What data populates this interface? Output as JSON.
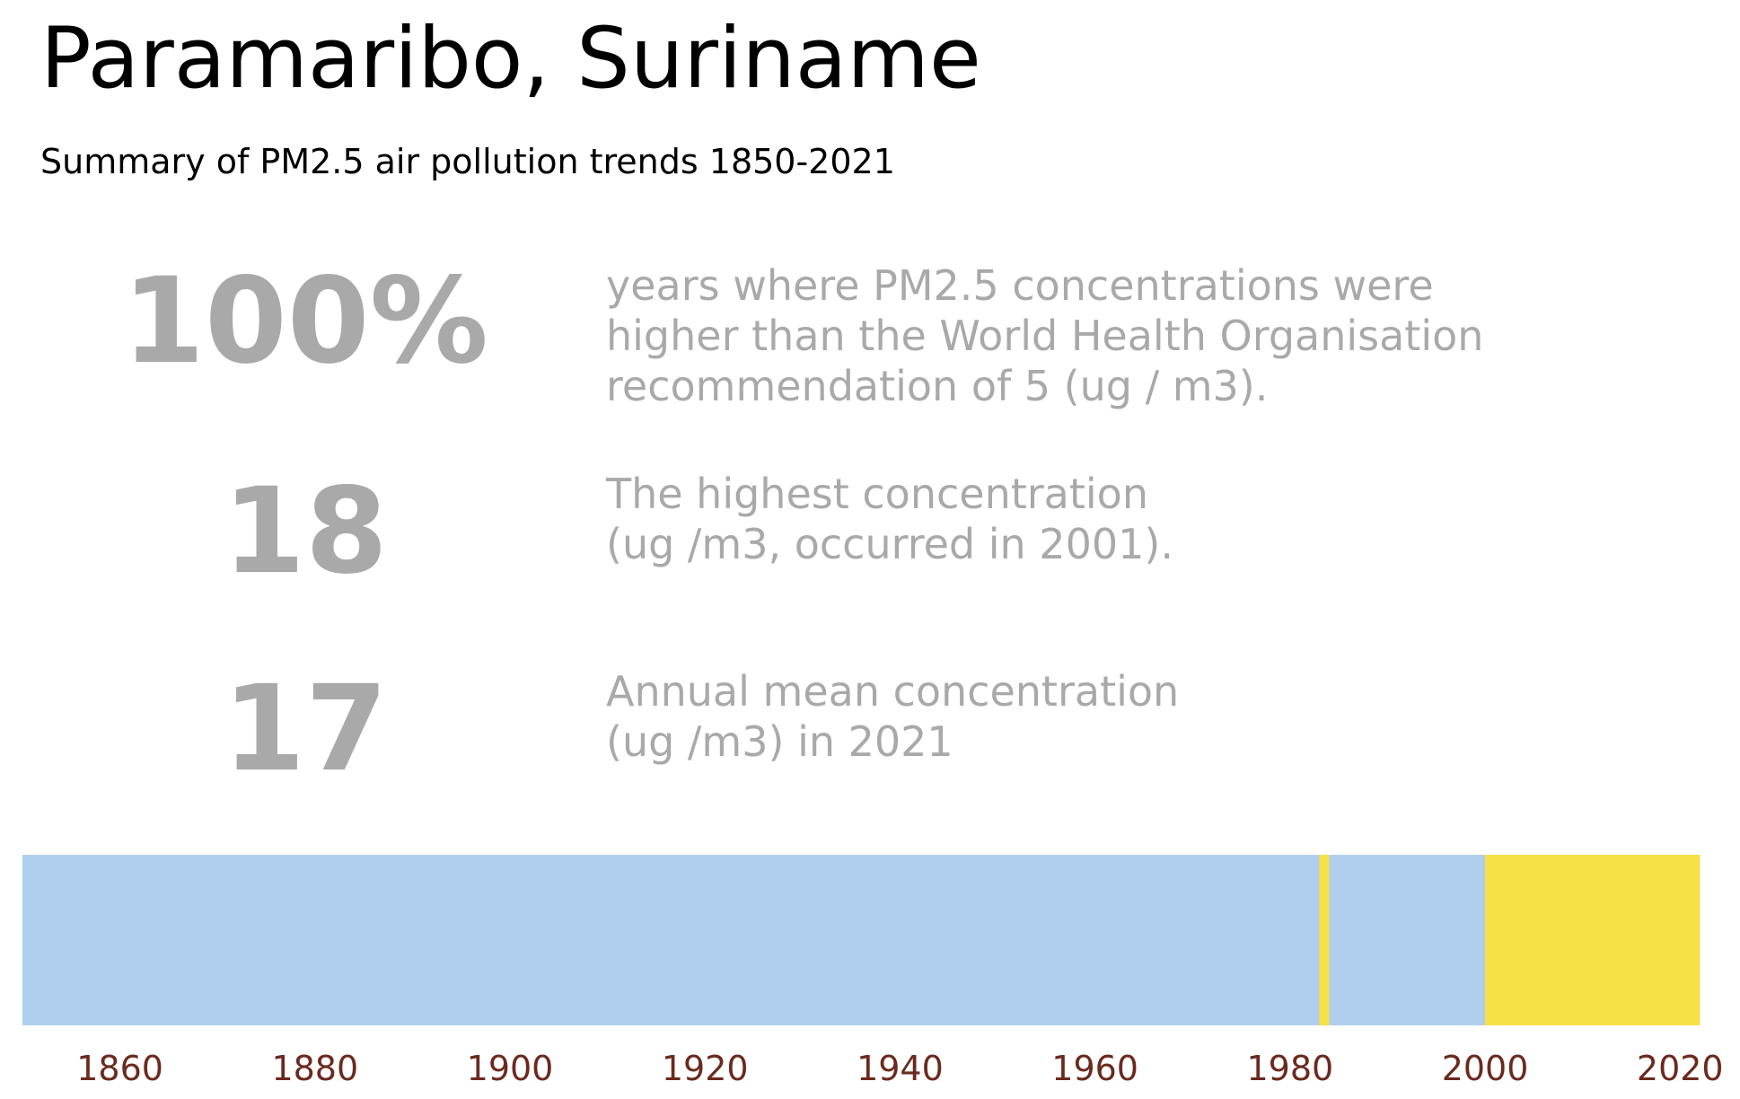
{
  "header": {
    "title": "Paramaribo, Suriname",
    "subtitle": "Summary of PM2.5 air pollution trends 1850-2021"
  },
  "stats": [
    {
      "value": "100%",
      "description": "years where PM2.5 concentrations were\nhigher than the World Health Organisation\nrecommendation of 5 (ug / m3)."
    },
    {
      "value": "18",
      "description": "The highest concentration\n(ug /m3, occurred in 2001)."
    },
    {
      "value": "17",
      "description": "Annual mean concentration\n(ug /m3) in 2021"
    }
  ],
  "colors": {
    "text_gray": "#a9a9a9",
    "below": "#b0cfec",
    "above": "#f8e047",
    "tick_label": "#6b2a1e"
  },
  "chart_data": {
    "type": "heatmap",
    "title": "",
    "xlabel": "",
    "ylabel": "",
    "xlim": [
      1850,
      2022
    ],
    "x_ticks": [
      1860,
      1880,
      1900,
      1920,
      1940,
      1960,
      1980,
      2000,
      2020
    ],
    "segments": [
      {
        "start": 1850,
        "end": 1983,
        "category": "below"
      },
      {
        "start": 1983,
        "end": 1984,
        "category": "above"
      },
      {
        "start": 1984,
        "end": 2000,
        "category": "below"
      },
      {
        "start": 2000,
        "end": 2022,
        "category": "above"
      }
    ],
    "grid": false,
    "legend": "none"
  }
}
